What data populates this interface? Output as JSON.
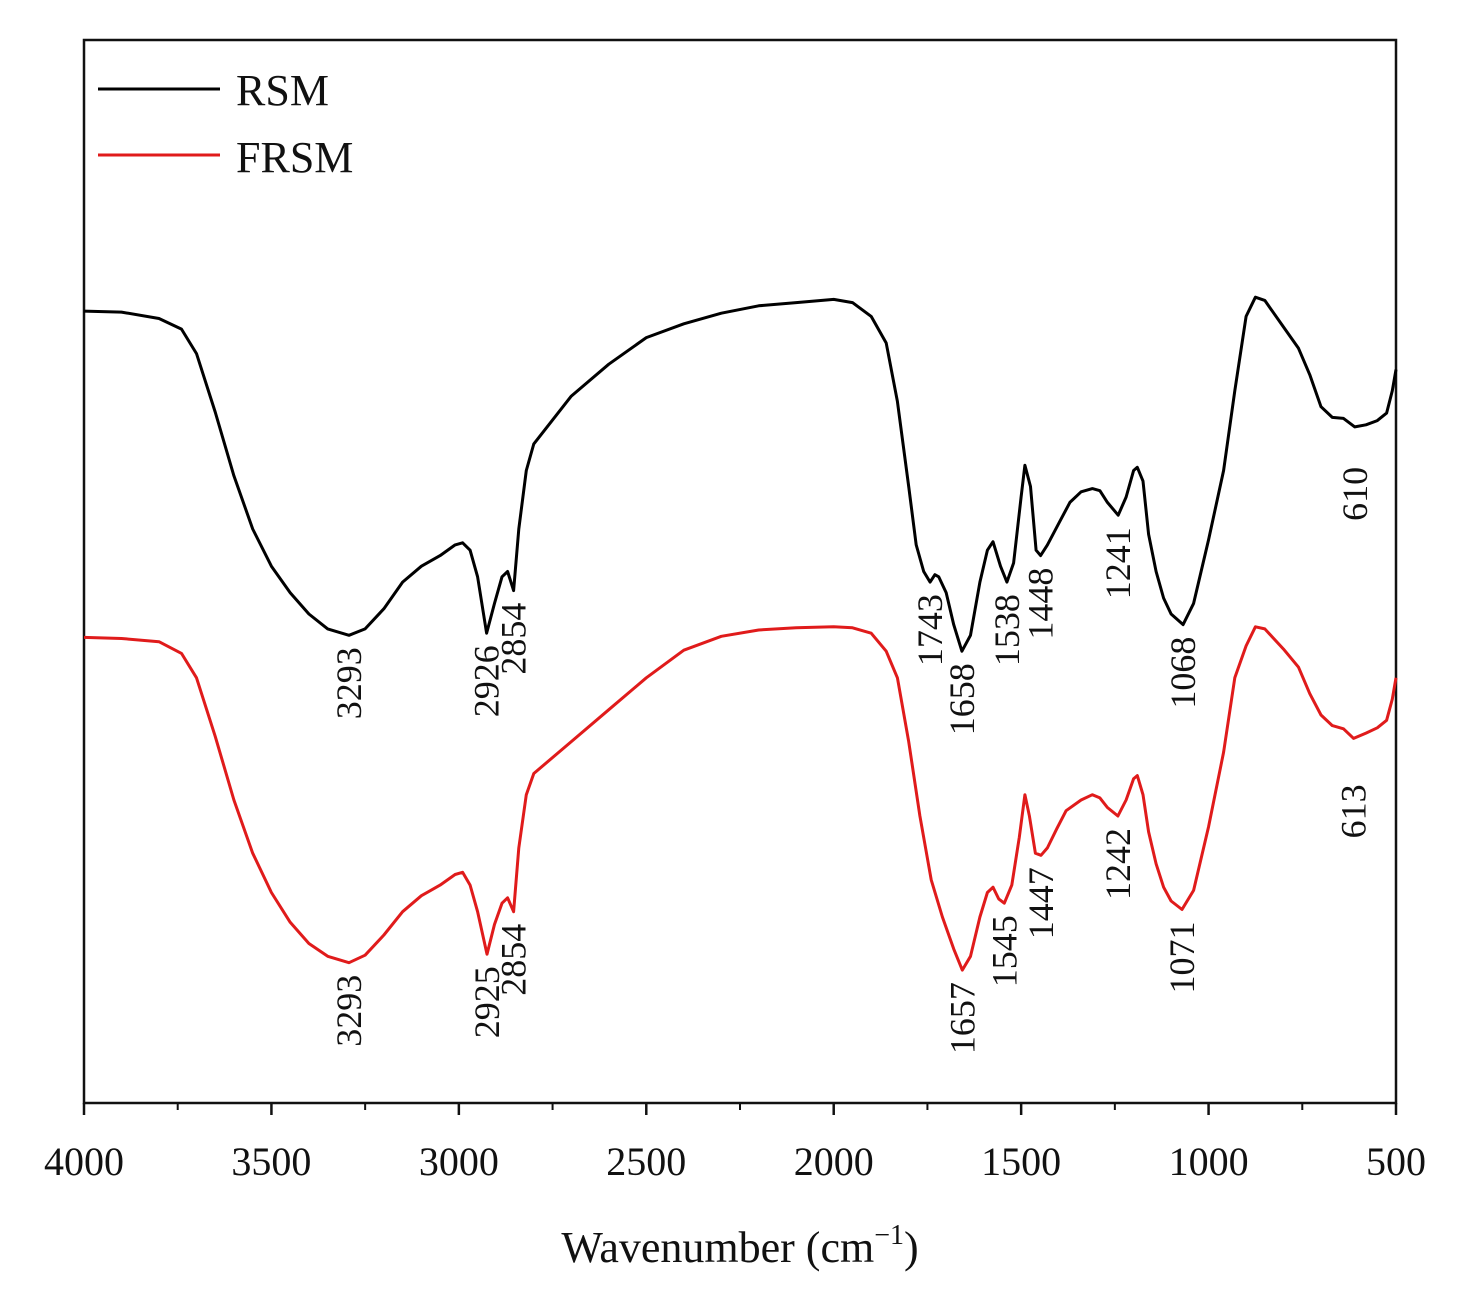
{
  "chart_data": {
    "type": "line",
    "title": "",
    "xlabel": "Wavenumber (cm",
    "xlabel_sup": "−1",
    "xlabel_close": ")",
    "ylabel": "",
    "xlim": [
      4000,
      500
    ],
    "ylim": [
      0,
      100
    ],
    "x_ticks": [
      "4000",
      "3500",
      "3000",
      "2500",
      "2000",
      "1500",
      "1000",
      "500"
    ],
    "x_tick_values": [
      4000,
      3500,
      3000,
      2500,
      2000,
      1500,
      1000,
      500
    ],
    "legend_position": "top-left",
    "series": [
      {
        "name": "RSM",
        "color": "#000000",
        "points": [
          [
            4000,
            74.5
          ],
          [
            3900,
            74.4
          ],
          [
            3800,
            73.8
          ],
          [
            3740,
            72.8
          ],
          [
            3700,
            70.5
          ],
          [
            3650,
            65.0
          ],
          [
            3600,
            59.0
          ],
          [
            3550,
            54.0
          ],
          [
            3500,
            50.5
          ],
          [
            3450,
            48.0
          ],
          [
            3400,
            46.0
          ],
          [
            3350,
            44.6
          ],
          [
            3293,
            44.0
          ],
          [
            3250,
            44.6
          ],
          [
            3200,
            46.5
          ],
          [
            3150,
            49.0
          ],
          [
            3100,
            50.5
          ],
          [
            3050,
            51.5
          ],
          [
            3010,
            52.5
          ],
          [
            2990,
            52.7
          ],
          [
            2970,
            52.0
          ],
          [
            2950,
            49.5
          ],
          [
            2926,
            44.2
          ],
          [
            2905,
            47.0
          ],
          [
            2885,
            49.5
          ],
          [
            2870,
            50.0
          ],
          [
            2854,
            48.2
          ],
          [
            2840,
            54.0
          ],
          [
            2820,
            59.5
          ],
          [
            2800,
            62.0
          ],
          [
            2700,
            66.5
          ],
          [
            2600,
            69.5
          ],
          [
            2500,
            72.0
          ],
          [
            2400,
            73.3
          ],
          [
            2300,
            74.3
          ],
          [
            2200,
            75.0
          ],
          [
            2100,
            75.3
          ],
          [
            2000,
            75.6
          ],
          [
            1950,
            75.3
          ],
          [
            1900,
            74.0
          ],
          [
            1860,
            71.5
          ],
          [
            1830,
            66.0
          ],
          [
            1800,
            58.0
          ],
          [
            1780,
            52.5
          ],
          [
            1760,
            50.0
          ],
          [
            1743,
            49.0
          ],
          [
            1730,
            49.7
          ],
          [
            1720,
            49.5
          ],
          [
            1700,
            48.0
          ],
          [
            1680,
            45.0
          ],
          [
            1658,
            42.5
          ],
          [
            1635,
            44.0
          ],
          [
            1610,
            49.0
          ],
          [
            1590,
            52.0
          ],
          [
            1575,
            52.8
          ],
          [
            1555,
            50.5
          ],
          [
            1538,
            49.0
          ],
          [
            1520,
            50.8
          ],
          [
            1500,
            57.0
          ],
          [
            1490,
            60.0
          ],
          [
            1475,
            58.0
          ],
          [
            1460,
            52.0
          ],
          [
            1448,
            51.5
          ],
          [
            1430,
            52.5
          ],
          [
            1400,
            54.5
          ],
          [
            1370,
            56.5
          ],
          [
            1340,
            57.5
          ],
          [
            1310,
            57.8
          ],
          [
            1290,
            57.6
          ],
          [
            1270,
            56.5
          ],
          [
            1241,
            55.3
          ],
          [
            1220,
            57.0
          ],
          [
            1200,
            59.5
          ],
          [
            1190,
            59.8
          ],
          [
            1175,
            58.5
          ],
          [
            1160,
            53.5
          ],
          [
            1140,
            50.0
          ],
          [
            1120,
            47.5
          ],
          [
            1100,
            46.0
          ],
          [
            1068,
            45.0
          ],
          [
            1040,
            47.0
          ],
          [
            1000,
            53.0
          ],
          [
            960,
            59.5
          ],
          [
            930,
            67.0
          ],
          [
            900,
            74.0
          ],
          [
            875,
            75.8
          ],
          [
            850,
            75.5
          ],
          [
            800,
            73.0
          ],
          [
            760,
            71.0
          ],
          [
            730,
            68.5
          ],
          [
            700,
            65.5
          ],
          [
            670,
            64.5
          ],
          [
            640,
            64.4
          ],
          [
            610,
            63.6
          ],
          [
            580,
            63.8
          ],
          [
            550,
            64.2
          ],
          [
            525,
            64.9
          ],
          [
            510,
            67.0
          ],
          [
            500,
            69.0
          ]
        ]
      },
      {
        "name": "FRSM",
        "color": "#e01b1b",
        "points": [
          [
            4000,
            43.8
          ],
          [
            3900,
            43.7
          ],
          [
            3800,
            43.4
          ],
          [
            3740,
            42.3
          ],
          [
            3700,
            40.0
          ],
          [
            3650,
            34.5
          ],
          [
            3600,
            28.5
          ],
          [
            3550,
            23.5
          ],
          [
            3500,
            19.8
          ],
          [
            3450,
            17.0
          ],
          [
            3400,
            15.0
          ],
          [
            3350,
            13.8
          ],
          [
            3293,
            13.2
          ],
          [
            3250,
            13.9
          ],
          [
            3200,
            15.8
          ],
          [
            3150,
            18.0
          ],
          [
            3100,
            19.5
          ],
          [
            3050,
            20.5
          ],
          [
            3010,
            21.5
          ],
          [
            2990,
            21.7
          ],
          [
            2970,
            20.5
          ],
          [
            2950,
            18.0
          ],
          [
            2925,
            14.0
          ],
          [
            2905,
            16.8
          ],
          [
            2885,
            18.8
          ],
          [
            2870,
            19.3
          ],
          [
            2854,
            18.0
          ],
          [
            2840,
            24.0
          ],
          [
            2820,
            29.0
          ],
          [
            2800,
            31.0
          ],
          [
            2700,
            34.0
          ],
          [
            2600,
            37.0
          ],
          [
            2500,
            40.0
          ],
          [
            2400,
            42.6
          ],
          [
            2300,
            43.9
          ],
          [
            2200,
            44.5
          ],
          [
            2100,
            44.7
          ],
          [
            2000,
            44.8
          ],
          [
            1950,
            44.7
          ],
          [
            1900,
            44.2
          ],
          [
            1860,
            42.5
          ],
          [
            1830,
            40.0
          ],
          [
            1800,
            34.0
          ],
          [
            1770,
            27.0
          ],
          [
            1740,
            21.0
          ],
          [
            1710,
            17.5
          ],
          [
            1680,
            14.5
          ],
          [
            1657,
            12.5
          ],
          [
            1635,
            13.8
          ],
          [
            1610,
            17.5
          ],
          [
            1590,
            19.8
          ],
          [
            1575,
            20.3
          ],
          [
            1560,
            19.2
          ],
          [
            1545,
            18.8
          ],
          [
            1525,
            20.5
          ],
          [
            1505,
            25.0
          ],
          [
            1490,
            29.0
          ],
          [
            1478,
            27.0
          ],
          [
            1462,
            23.5
          ],
          [
            1447,
            23.3
          ],
          [
            1430,
            24.0
          ],
          [
            1405,
            25.8
          ],
          [
            1380,
            27.5
          ],
          [
            1340,
            28.5
          ],
          [
            1310,
            29.0
          ],
          [
            1290,
            28.7
          ],
          [
            1270,
            27.8
          ],
          [
            1242,
            27.0
          ],
          [
            1220,
            28.5
          ],
          [
            1200,
            30.5
          ],
          [
            1190,
            30.8
          ],
          [
            1175,
            29.0
          ],
          [
            1160,
            25.5
          ],
          [
            1140,
            22.5
          ],
          [
            1120,
            20.3
          ],
          [
            1100,
            19.0
          ],
          [
            1071,
            18.2
          ],
          [
            1040,
            20.0
          ],
          [
            1000,
            26.0
          ],
          [
            960,
            33.0
          ],
          [
            930,
            40.0
          ],
          [
            900,
            43.0
          ],
          [
            875,
            44.8
          ],
          [
            850,
            44.6
          ],
          [
            800,
            42.7
          ],
          [
            760,
            41.0
          ],
          [
            730,
            38.5
          ],
          [
            700,
            36.5
          ],
          [
            670,
            35.5
          ],
          [
            640,
            35.2
          ],
          [
            613,
            34.3
          ],
          [
            580,
            34.8
          ],
          [
            550,
            35.3
          ],
          [
            525,
            36.0
          ],
          [
            510,
            38.0
          ],
          [
            500,
            40.0
          ]
        ]
      }
    ],
    "annotations": [
      {
        "series": "RSM",
        "text": "3293",
        "x": 3293,
        "y": 44.0
      },
      {
        "series": "RSM",
        "text": "2926",
        "x": 2926,
        "y": 44.2
      },
      {
        "series": "RSM",
        "text": "2854",
        "x": 2854,
        "y": 48.2
      },
      {
        "series": "RSM",
        "text": "1743",
        "x": 1743,
        "y": 49.0
      },
      {
        "series": "RSM",
        "text": "1658",
        "x": 1658,
        "y": 42.5
      },
      {
        "series": "RSM",
        "text": "1538",
        "x": 1538,
        "y": 49.0
      },
      {
        "series": "RSM",
        "text": "1448",
        "x": 1448,
        "y": 51.5
      },
      {
        "series": "RSM",
        "text": "1241",
        "x": 1241,
        "y": 55.3
      },
      {
        "series": "RSM",
        "text": "1068",
        "x": 1068,
        "y": 45.0
      },
      {
        "series": "RSM",
        "text": "610",
        "x": 610,
        "y": 63.6
      },
      {
        "series": "FRSM",
        "text": "3293",
        "x": 3293,
        "y": 13.2
      },
      {
        "series": "FRSM",
        "text": "2925",
        "x": 2925,
        "y": 14.0
      },
      {
        "series": "FRSM",
        "text": "2854",
        "x": 2854,
        "y": 18.0
      },
      {
        "series": "FRSM",
        "text": "1657",
        "x": 1657,
        "y": 12.5
      },
      {
        "series": "FRSM",
        "text": "1545",
        "x": 1545,
        "y": 18.8
      },
      {
        "series": "FRSM",
        "text": "1447",
        "x": 1447,
        "y": 23.3
      },
      {
        "series": "FRSM",
        "text": "1242",
        "x": 1242,
        "y": 27.0
      },
      {
        "series": "FRSM",
        "text": "1071",
        "x": 1071,
        "y": 18.2
      },
      {
        "series": "FRSM",
        "text": "613",
        "x": 613,
        "y": 34.3
      }
    ]
  }
}
